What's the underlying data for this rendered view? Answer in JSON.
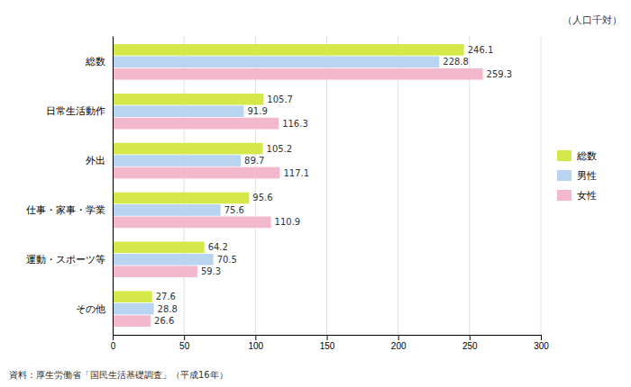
{
  "chart_data": {
    "type": "bar",
    "orientation": "horizontal",
    "categories": [
      "総数",
      "日常生活動作",
      "外出",
      "仕事・家事・学業",
      "運動・スポーツ等",
      "その他"
    ],
    "series": [
      {
        "name": "総数",
        "color": "#d4e84a",
        "values": [
          246.1,
          105.7,
          105.2,
          95.6,
          64.2,
          27.6
        ]
      },
      {
        "name": "男性",
        "color": "#b8d4f0",
        "values": [
          228.8,
          91.9,
          89.7,
          75.6,
          70.5,
          28.8
        ]
      },
      {
        "name": "女性",
        "color": "#f4b8cc",
        "values": [
          259.3,
          116.3,
          117.1,
          110.9,
          59.3,
          26.6
        ]
      }
    ],
    "xlim": [
      0,
      300
    ],
    "xticks": [
      0,
      50,
      100,
      150,
      200,
      250,
      300
    ],
    "grid": true,
    "data_labels": true,
    "legend": "right",
    "annotations": [
      "（人口千対）",
      "資料：厚生労働省「国民生活基礎調査」（平成16年）"
    ]
  }
}
